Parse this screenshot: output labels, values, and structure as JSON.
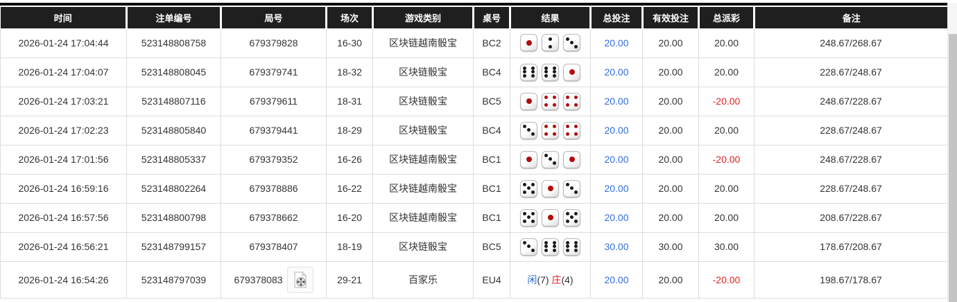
{
  "header": {
    "columns": [
      "时间",
      "注单编号",
      "局号",
      "场次",
      "游戏类别",
      "桌号",
      "结果",
      "总投注",
      "有效投注",
      "总派彩",
      "备注"
    ]
  },
  "colors": {
    "header_bg": "#1f1f1f",
    "amount_blue": "#2f6edb",
    "negative_red": "#e32424",
    "dice_red_pip": "#b00c0c",
    "dice_black_pip": "#1a1a1a"
  },
  "icons": {
    "video_replay": "video-file-icon"
  },
  "rows": [
    {
      "time": "2026-01-24 17:04:44",
      "bet_id": "523148808758",
      "round": "679379828",
      "video": false,
      "session": "16-30",
      "game": "区块链越南骰宝",
      "table_no": "BC2",
      "result_type": "dice",
      "dice": [
        1,
        2,
        3
      ],
      "total_bet": "20.00",
      "valid_bet": "20.00",
      "payout": "20.00",
      "remark": "248.67/268.67"
    },
    {
      "time": "2026-01-24 17:04:07",
      "bet_id": "523148808045",
      "round": "679379741",
      "video": false,
      "session": "18-32",
      "game": "区块链骰宝",
      "table_no": "BC4",
      "result_type": "dice",
      "dice": [
        6,
        6,
        1
      ],
      "total_bet": "20.00",
      "valid_bet": "20.00",
      "payout": "20.00",
      "remark": "228.67/248.67"
    },
    {
      "time": "2026-01-24 17:03:21",
      "bet_id": "523148807116",
      "round": "679379611",
      "video": false,
      "session": "18-31",
      "game": "区块链骰宝",
      "table_no": "BC5",
      "result_type": "dice",
      "dice": [
        1,
        4,
        4
      ],
      "total_bet": "20.00",
      "valid_bet": "20.00",
      "payout": "-20.00",
      "remark": "248.67/228.67"
    },
    {
      "time": "2026-01-24 17:02:23",
      "bet_id": "523148805840",
      "round": "679379441",
      "video": false,
      "session": "18-29",
      "game": "区块链骰宝",
      "table_no": "BC4",
      "result_type": "dice",
      "dice": [
        3,
        4,
        4
      ],
      "total_bet": "20.00",
      "valid_bet": "20.00",
      "payout": "20.00",
      "remark": "228.67/248.67"
    },
    {
      "time": "2026-01-24 17:01:56",
      "bet_id": "523148805337",
      "round": "679379352",
      "video": false,
      "session": "16-26",
      "game": "区块链越南骰宝",
      "table_no": "BC1",
      "result_type": "dice",
      "dice": [
        1,
        3,
        1
      ],
      "total_bet": "20.00",
      "valid_bet": "20.00",
      "payout": "-20.00",
      "remark": "248.67/228.67"
    },
    {
      "time": "2026-01-24 16:59:16",
      "bet_id": "523148802264",
      "round": "679378886",
      "video": false,
      "session": "16-22",
      "game": "区块链越南骰宝",
      "table_no": "BC1",
      "result_type": "dice",
      "dice": [
        5,
        1,
        3
      ],
      "total_bet": "20.00",
      "valid_bet": "20.00",
      "payout": "20.00",
      "remark": "228.67/248.67"
    },
    {
      "time": "2026-01-24 16:57:56",
      "bet_id": "523148800798",
      "round": "679378662",
      "video": false,
      "session": "16-20",
      "game": "区块链越南骰宝",
      "table_no": "BC1",
      "result_type": "dice",
      "dice": [
        5,
        1,
        5
      ],
      "total_bet": "20.00",
      "valid_bet": "20.00",
      "payout": "20.00",
      "remark": "208.67/228.67"
    },
    {
      "time": "2026-01-24 16:56:21",
      "bet_id": "523148799157",
      "round": "679378407",
      "video": false,
      "session": "18-19",
      "game": "区块链骰宝",
      "table_no": "BC5",
      "result_type": "dice",
      "dice": [
        3,
        6,
        6
      ],
      "total_bet": "30.00",
      "valid_bet": "30.00",
      "payout": "30.00",
      "remark": "178.67/208.67"
    },
    {
      "time": "2026-01-24 16:54:26",
      "bet_id": "523148797039",
      "round": "679378083",
      "video": true,
      "session": "29-21",
      "game": "百家乐",
      "table_no": "EU4",
      "result_type": "baccarat",
      "baccarat": {
        "player_label": "闲",
        "player_value": "(7)",
        "banker_label": "庄",
        "banker_value": "(4)"
      },
      "total_bet": "20.00",
      "valid_bet": "20.00",
      "payout": "-20.00",
      "remark": "198.67/178.67"
    }
  ]
}
